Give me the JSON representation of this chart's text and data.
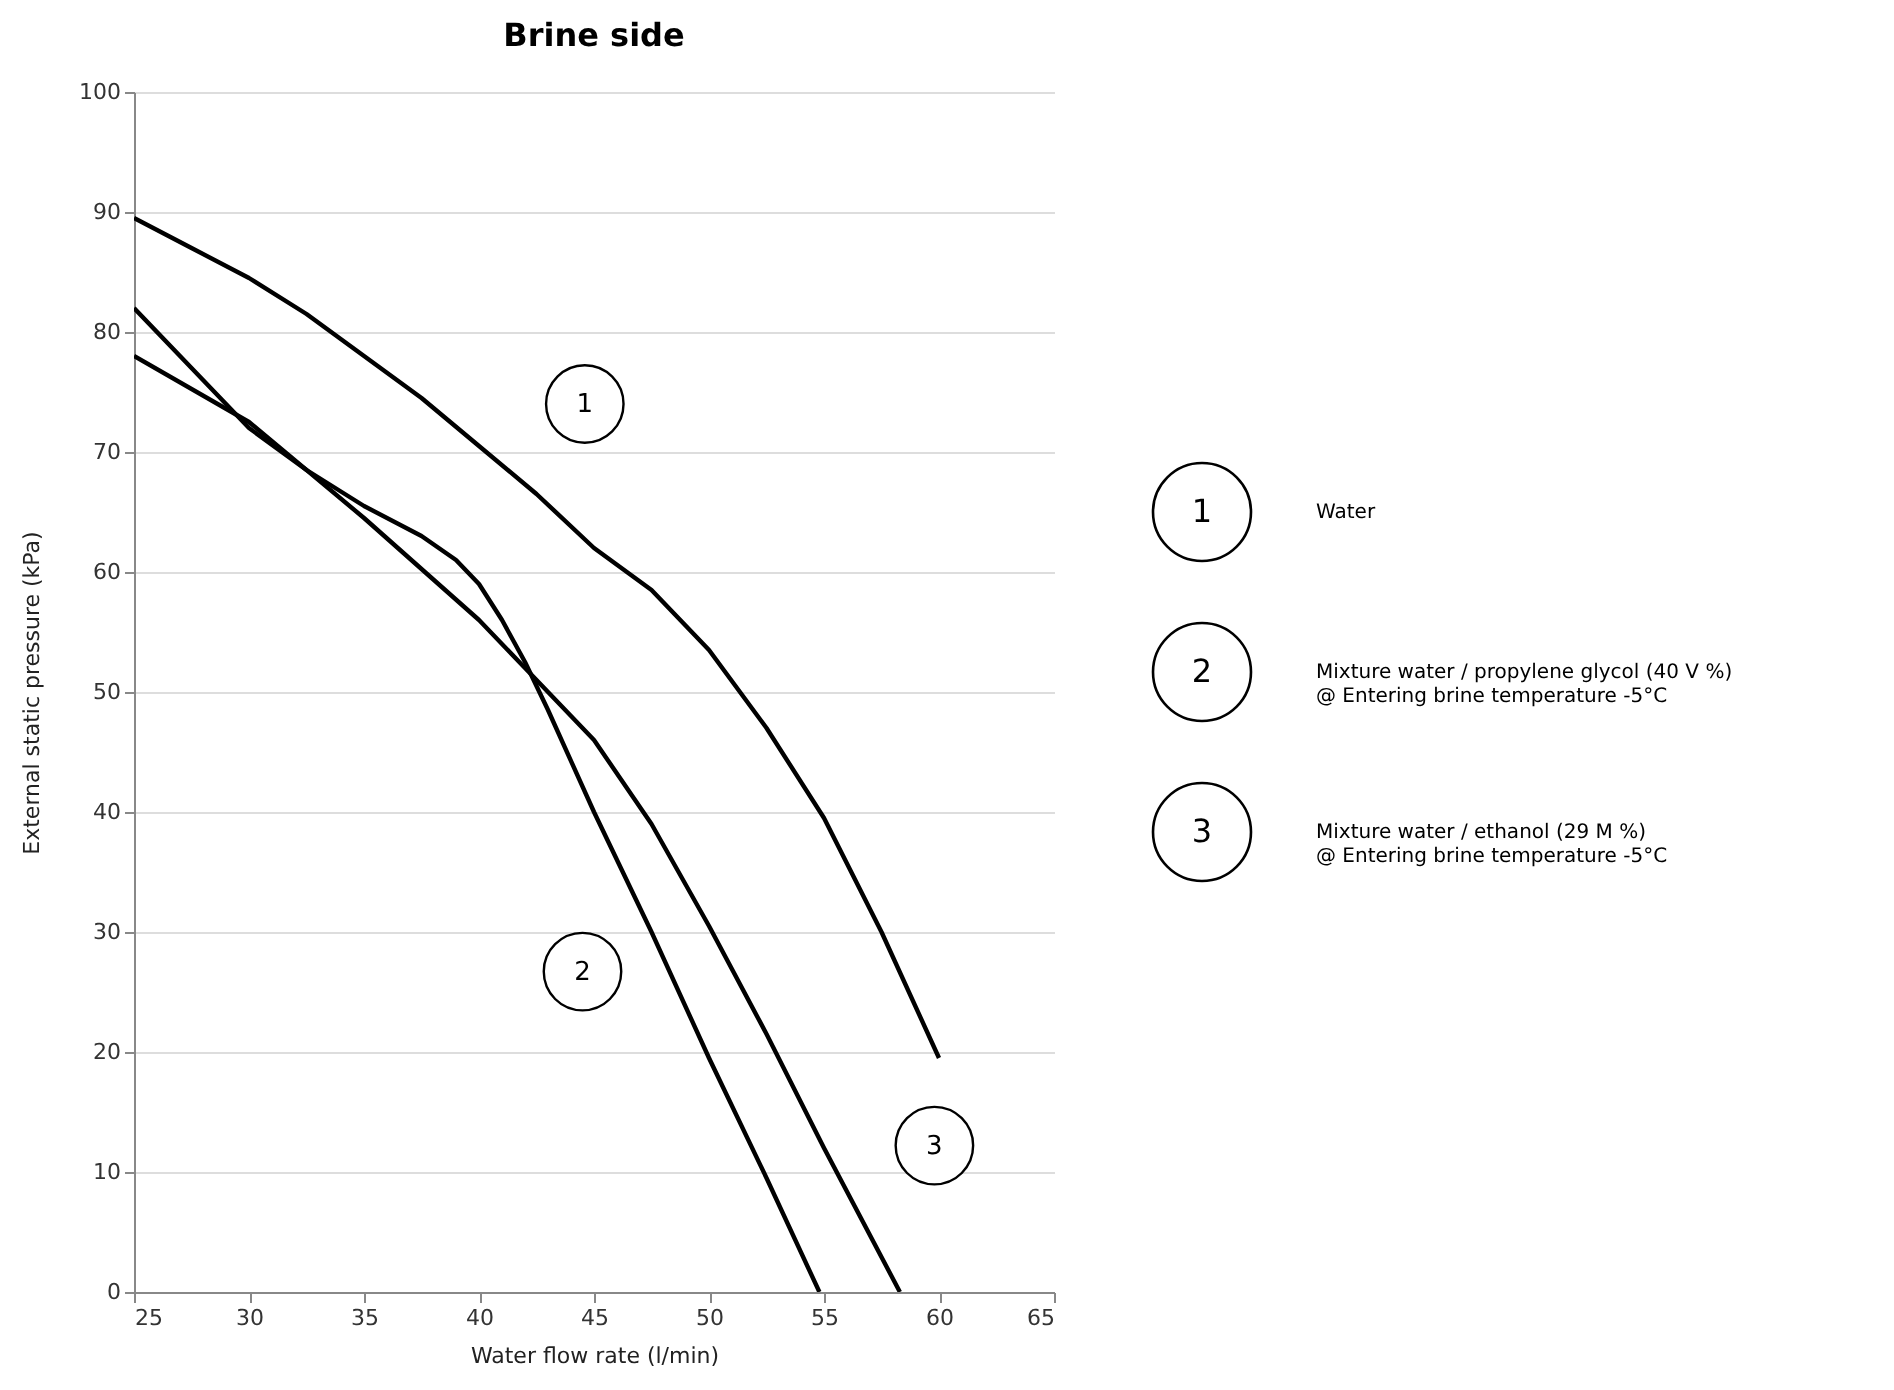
{
  "chart_data": {
    "type": "line",
    "title": "Brine side",
    "xlabel": "Water flow rate (l/min)",
    "ylabel": "External static pressure (kPa)",
    "xlim": [
      25,
      65
    ],
    "xticks": [
      25,
      30,
      35,
      40,
      45,
      50,
      55,
      60,
      65
    ],
    "ylim": [
      0,
      100
    ],
    "yticks": [
      0,
      10,
      20,
      30,
      40,
      50,
      60,
      70,
      80,
      90,
      100
    ],
    "grid": "y",
    "legend": "right",
    "series": [
      {
        "name": "Water",
        "color": "#000000",
        "x": [
          25,
          27.5,
          30,
          32.5,
          35,
          37.5,
          40,
          42.5,
          45,
          47.5,
          50,
          52.5,
          55,
          57.5,
          60
        ],
        "values": [
          89.5,
          87,
          84.5,
          81.5,
          78,
          74.5,
          70.5,
          66.5,
          62,
          58.5,
          53.5,
          47,
          39.5,
          30,
          19.5
        ]
      },
      {
        "name": "Mixture water / propylene glycol (40 V %)\n@ Entering brine temperature -5°C",
        "color": "#000000",
        "x": [
          25,
          27.5,
          30,
          32.5,
          35,
          37.5,
          39,
          40,
          41,
          42,
          43,
          45,
          47.5,
          50,
          52.5,
          54.8
        ],
        "values": [
          82,
          77,
          72,
          68.5,
          65.5,
          63,
          61,
          59,
          56,
          52.5,
          48.5,
          40,
          30,
          19.5,
          9.5,
          0
        ]
      },
      {
        "name": "Mixture water / ethanol (29 M %)\n@ Entering brine temperature -5°C",
        "color": "#000000",
        "x": [
          25,
          30,
          35,
          40,
          42,
          45,
          47.5,
          50,
          52.5,
          55,
          58.3
        ],
        "values": [
          78,
          72.5,
          64.5,
          56,
          52,
          46,
          39,
          30.5,
          21.5,
          12,
          0
        ]
      }
    ],
    "annotations": [
      {
        "text": "1",
        "x": 44.6,
        "y": 74
      },
      {
        "text": "2",
        "x": 44.5,
        "y": 26.7
      },
      {
        "text": "3",
        "x": 59.8,
        "y": 12.2
      }
    ]
  }
}
